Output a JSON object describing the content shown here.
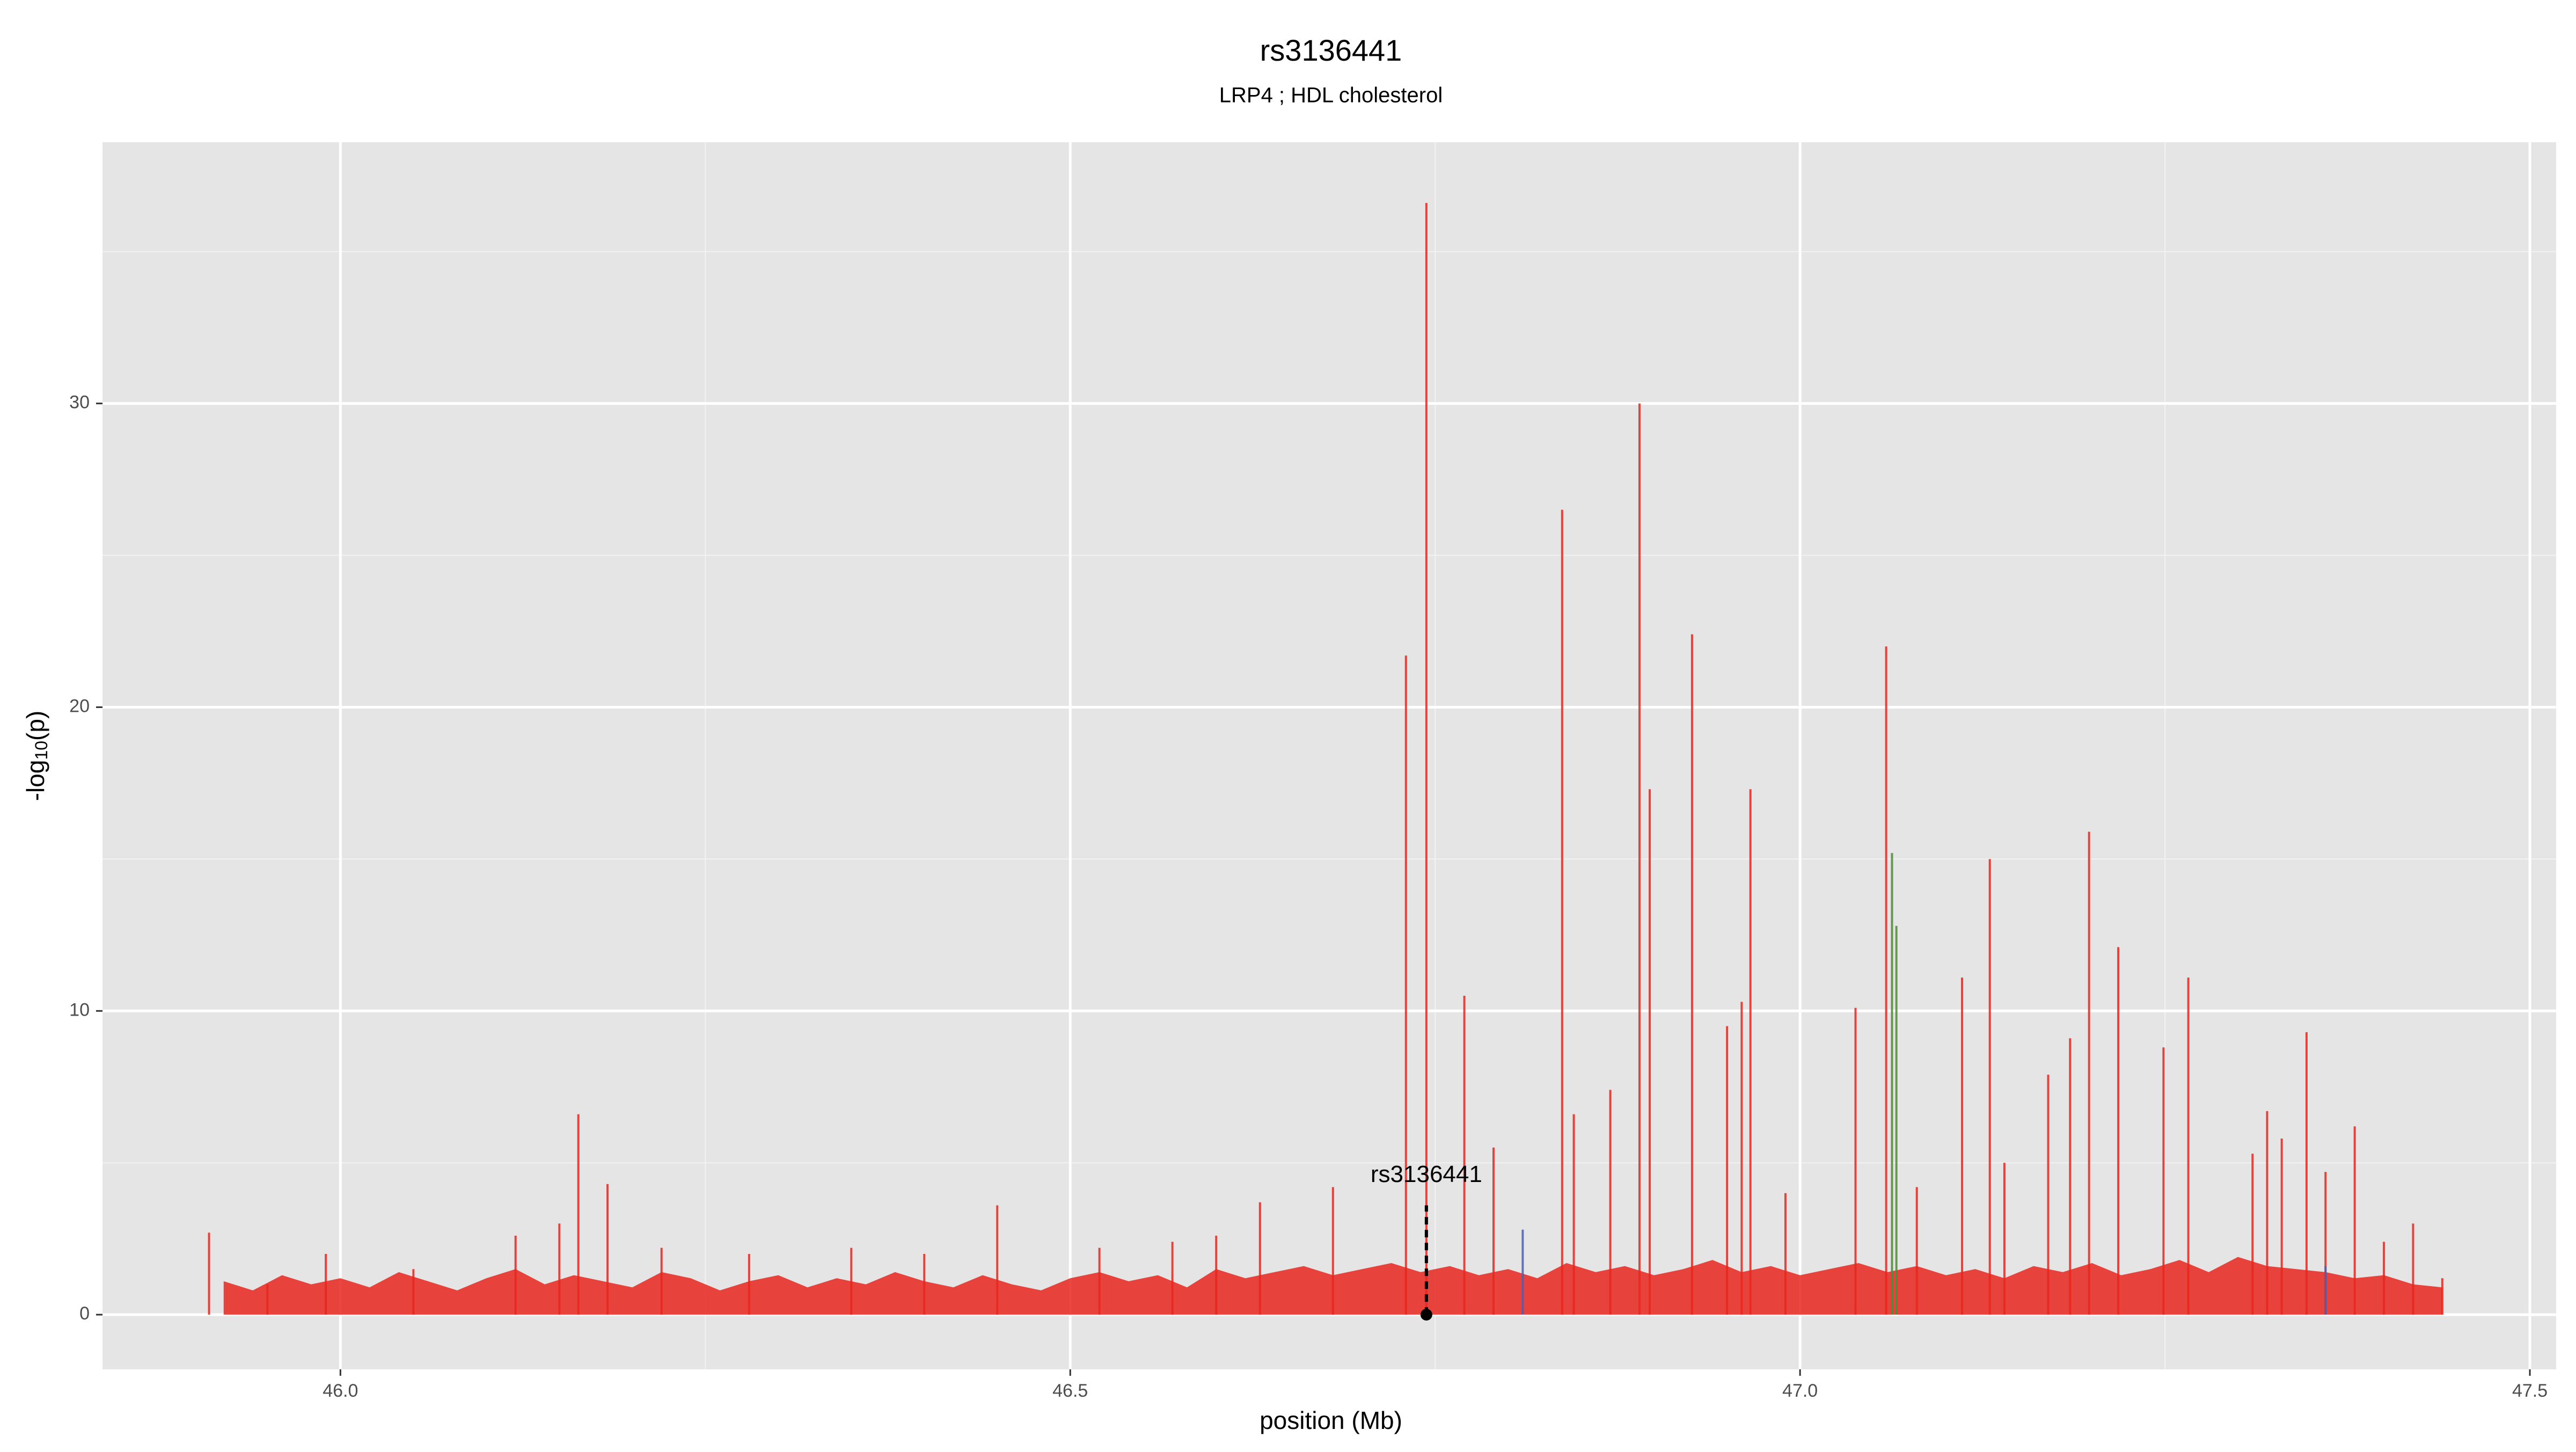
{
  "chart_data": {
    "type": "spike",
    "title": "rs3136441",
    "subtitle": "LRP4 ; HDL cholesterol",
    "x_label": "position (Mb)",
    "y_label": {
      "prefix": "-log",
      "sub": "10",
      "suffix": "(p)"
    },
    "xlim": [
      45.837,
      47.518
    ],
    "ylim": [
      -1.8,
      38.6
    ],
    "xticks": [
      {
        "value": 46,
        "label": "46.0"
      },
      46.5,
      {
        "value": 47,
        "label": "47.0"
      },
      47.5
    ],
    "yticks": [
      0,
      10,
      20,
      30
    ],
    "grid": true,
    "background": "#e5e5e5",
    "baseline": {
      "type": "area",
      "color": "#e8261d",
      "x": [
        45.92,
        45.94,
        45.96,
        45.98,
        46.0,
        46.02,
        46.04,
        46.06,
        46.08,
        46.1,
        46.12,
        46.14,
        46.16,
        46.18,
        46.2,
        46.22,
        46.24,
        46.26,
        46.28,
        46.3,
        46.32,
        46.34,
        46.36,
        46.38,
        46.4,
        46.42,
        46.44,
        46.46,
        46.48,
        46.5,
        46.52,
        46.54,
        46.56,
        46.58,
        46.6,
        46.62,
        46.64,
        46.66,
        46.68,
        46.7,
        46.72,
        46.74,
        46.76,
        46.78,
        46.8,
        46.82,
        46.84,
        46.86,
        46.88,
        46.9,
        46.92,
        46.94,
        46.96,
        46.98,
        47.0,
        47.02,
        47.04,
        47.06,
        47.08,
        47.1,
        47.12,
        47.14,
        47.16,
        47.18,
        47.2,
        47.22,
        47.24,
        47.26,
        47.28,
        47.3,
        47.32,
        47.34,
        47.36,
        47.38,
        47.4,
        47.42,
        47.44
      ],
      "values": [
        1.1,
        0.8,
        1.3,
        1.0,
        1.2,
        0.9,
        1.4,
        1.1,
        0.8,
        1.2,
        1.5,
        1.0,
        1.3,
        1.1,
        0.9,
        1.4,
        1.2,
        0.8,
        1.1,
        1.3,
        0.9,
        1.2,
        1.0,
        1.4,
        1.1,
        0.9,
        1.3,
        1.0,
        0.8,
        1.2,
        1.4,
        1.1,
        1.3,
        0.9,
        1.5,
        1.2,
        1.4,
        1.6,
        1.3,
        1.5,
        1.7,
        1.4,
        1.6,
        1.3,
        1.5,
        1.2,
        1.7,
        1.4,
        1.6,
        1.3,
        1.5,
        1.8,
        1.4,
        1.6,
        1.3,
        1.5,
        1.7,
        1.4,
        1.6,
        1.3,
        1.5,
        1.2,
        1.6,
        1.4,
        1.7,
        1.3,
        1.5,
        1.8,
        1.4,
        1.9,
        1.6,
        1.5,
        1.4,
        1.2,
        1.3,
        1.0,
        0.9
      ]
    },
    "series": [
      {
        "color": "#e8261d",
        "x": [
          45.91,
          45.95,
          45.99,
          46.05,
          46.12,
          46.15,
          46.163,
          46.183,
          46.22,
          46.28,
          46.35,
          46.4,
          46.45,
          46.52,
          46.57,
          46.6,
          46.63,
          46.68,
          46.73,
          46.744,
          46.77,
          46.79,
          46.837,
          46.845,
          46.87,
          46.89,
          46.897,
          46.926,
          46.95,
          46.96,
          46.966,
          46.99,
          47.038,
          47.059,
          47.08,
          47.111,
          47.13,
          47.14,
          47.17,
          47.185,
          47.198,
          47.218,
          47.249,
          47.266,
          47.31,
          47.32,
          47.33,
          47.347,
          47.36,
          47.38,
          47.4,
          47.42,
          47.44
        ],
        "values": [
          2.7,
          1.0,
          2.0,
          1.5,
          2.6,
          3.0,
          6.6,
          4.3,
          2.2,
          2.0,
          2.2,
          2.0,
          3.6,
          2.2,
          2.4,
          2.6,
          3.7,
          4.2,
          21.7,
          36.6,
          10.5,
          5.5,
          26.5,
          6.6,
          7.4,
          30.0,
          17.3,
          22.4,
          9.5,
          10.3,
          17.3,
          4.0,
          10.1,
          22.0,
          4.2,
          11.1,
          15.0,
          5.0,
          7.9,
          9.1,
          15.9,
          12.1,
          8.8,
          11.1,
          5.3,
          6.7,
          5.8,
          9.3,
          4.7,
          6.2,
          2.4,
          3.0,
          1.2
        ]
      },
      {
        "color": "#4f8a3a",
        "x": [
          47.063,
          47.066
        ],
        "values": [
          15.2,
          12.8
        ]
      },
      {
        "color": "#4a5fb0",
        "x": [
          46.81,
          47.36
        ],
        "values": [
          2.8,
          1.6
        ]
      }
    ],
    "annotation": {
      "label": "rs3136441",
      "x": 46.744,
      "y": 3.6
    }
  }
}
